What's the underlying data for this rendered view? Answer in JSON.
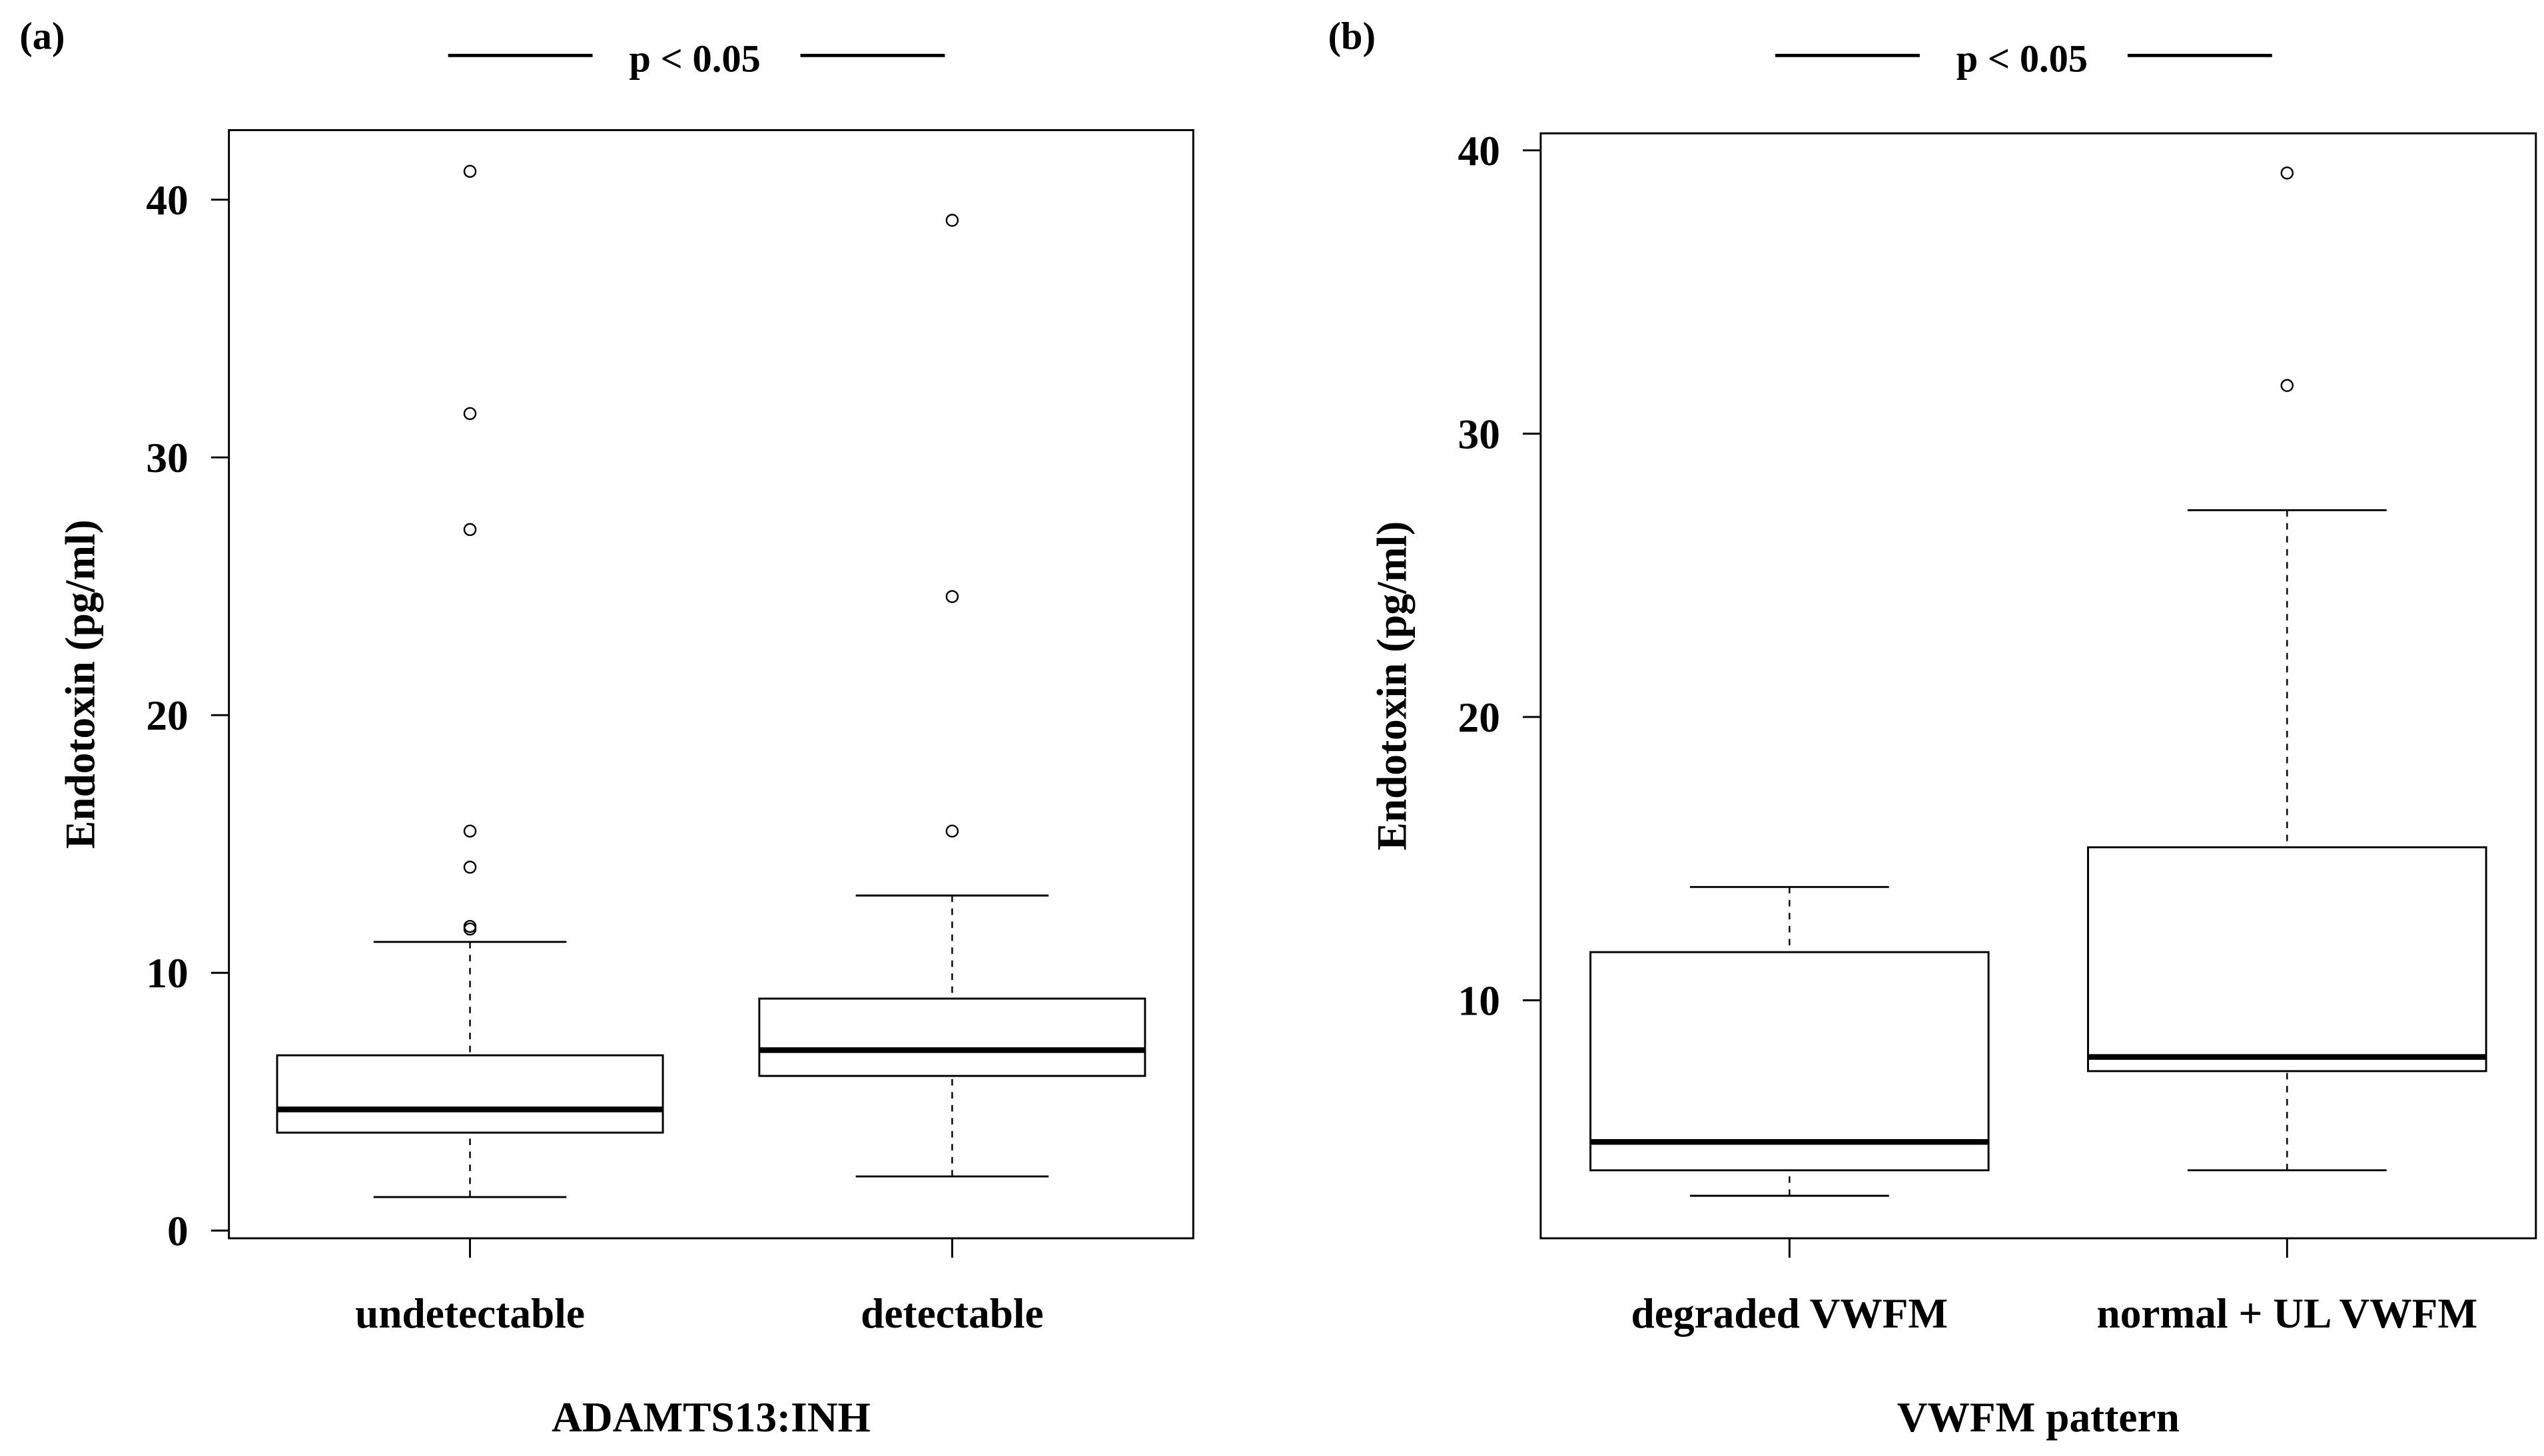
{
  "chart_data": [
    {
      "type": "box",
      "panel_label": "(a)",
      "annotation": "p < 0.05",
      "x_label": "ADAMTS13:INH",
      "y_label": "Endotoxin (pg/ml)",
      "categories": [
        "undetectable",
        "detectable"
      ],
      "boxes": [
        {
          "whislo": 1.3,
          "q1": 3.8,
          "med": 4.7,
          "q3": 6.8,
          "whishi": 11.2,
          "fliers": [
            41.1,
            31.7,
            27.2,
            15.5,
            14.1,
            11.8,
            11.7
          ]
        },
        {
          "whislo": 2.1,
          "q1": 6.0,
          "med": 7.0,
          "q3": 9.0,
          "whishi": 13.0,
          "fliers": [
            39.2,
            24.6,
            15.5
          ]
        }
      ],
      "ylim": [
        -0.3,
        42.7
      ],
      "yticks": [
        0,
        10,
        20,
        30,
        40
      ],
      "color": "#000000"
    },
    {
      "type": "box",
      "panel_label": "(b)",
      "annotation": "p < 0.05",
      "x_label": "VWFM pattern",
      "y_label": "Endotoxin (pg/ml)",
      "categories": [
        "degraded VWFM",
        "normal + UL VWFM"
      ],
      "boxes": [
        {
          "whislo": 3.1,
          "q1": 4.0,
          "med": 5.0,
          "q3": 11.7,
          "whishi": 14.0,
          "fliers": []
        },
        {
          "whislo": 4.0,
          "q1": 7.5,
          "med": 8.0,
          "q3": 15.4,
          "whishi": 27.3,
          "fliers": [
            39.2,
            31.7
          ]
        }
      ],
      "ylim": [
        1.6,
        40.6
      ],
      "yticks": [
        10,
        20,
        30,
        40
      ],
      "color": "#000000"
    }
  ]
}
